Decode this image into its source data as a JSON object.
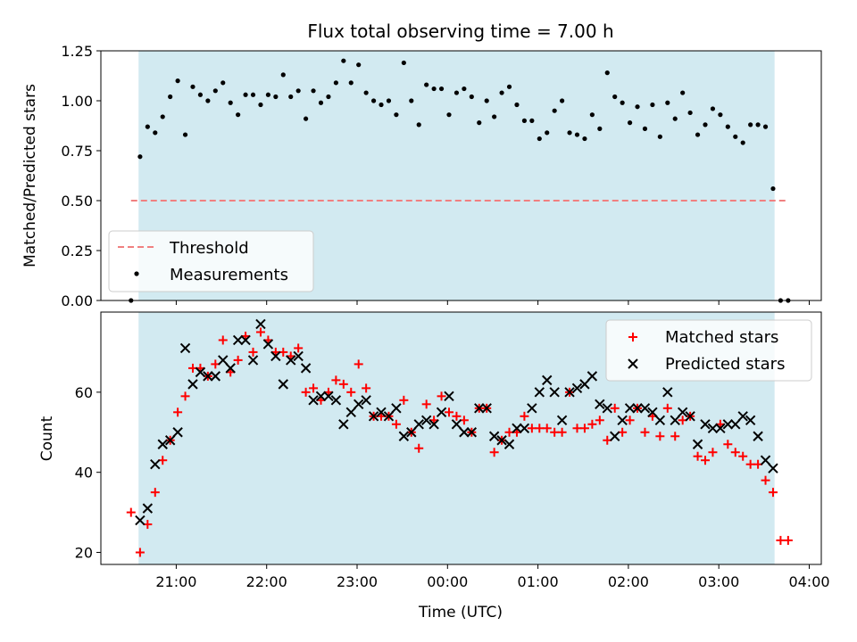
{
  "title": "Flux total observing time = 7.00 h",
  "colors": {
    "band": "#add8e6",
    "threshold": "#f08080",
    "measurements": "#000000",
    "matched": "#ff0000",
    "predicted": "#000000"
  },
  "chart_data": [
    {
      "type": "scatter",
      "panel": "top",
      "title": "Flux total observing time = 7.00 h",
      "xlabel": "",
      "ylabel": "Matched/Predicted stars",
      "xlim": [
        "20:10",
        "04:08"
      ],
      "ylim": [
        0,
        1.25
      ],
      "xticks": [
        "21:00",
        "22:00",
        "23:00",
        "00:00",
        "01:00",
        "02:00",
        "03:00",
        "04:00"
      ],
      "yticks": [
        "0.00",
        "0.25",
        "0.50",
        "0.75",
        "1.00",
        "1.25"
      ],
      "observing_window": [
        "20:35",
        "03:37"
      ],
      "legend_position": "lower-left",
      "threshold": {
        "name": "Threshold",
        "value": 0.5,
        "x_range": [
          "20:30",
          "03:46"
        ]
      },
      "series": [
        {
          "name": "Measurements",
          "x": [
            "20:30",
            "20:36",
            "20:41",
            "20:46",
            "20:51",
            "20:56",
            "21:01",
            "21:06",
            "21:11",
            "21:16",
            "21:21",
            "21:26",
            "21:31",
            "21:36",
            "21:41",
            "21:46",
            "21:51",
            "21:56",
            "22:01",
            "22:06",
            "22:11",
            "22:16",
            "22:21",
            "22:26",
            "22:31",
            "22:36",
            "22:41",
            "22:46",
            "22:51",
            "22:56",
            "23:01",
            "23:06",
            "23:11",
            "23:16",
            "23:21",
            "23:26",
            "23:31",
            "23:36",
            "23:41",
            "23:46",
            "23:51",
            "23:56",
            "00:01",
            "00:06",
            "00:11",
            "00:16",
            "00:21",
            "00:26",
            "00:31",
            "00:36",
            "00:41",
            "00:46",
            "00:51",
            "00:56",
            "01:01",
            "01:06",
            "01:11",
            "01:16",
            "01:21",
            "01:26",
            "01:31",
            "01:36",
            "01:41",
            "01:46",
            "01:51",
            "01:56",
            "02:01",
            "02:06",
            "02:11",
            "02:16",
            "02:21",
            "02:26",
            "02:31",
            "02:36",
            "02:41",
            "02:46",
            "02:51",
            "02:56",
            "03:01",
            "03:06",
            "03:11",
            "03:16",
            "03:21",
            "03:26",
            "03:31",
            "03:36",
            "03:41",
            "03:46"
          ],
          "y": [
            0.0,
            0.72,
            0.87,
            0.84,
            0.92,
            1.02,
            1.1,
            0.83,
            1.07,
            1.03,
            1.0,
            1.05,
            1.09,
            0.99,
            0.93,
            1.03,
            1.03,
            0.98,
            1.03,
            1.02,
            1.13,
            1.02,
            1.05,
            0.91,
            1.05,
            0.99,
            1.02,
            1.09,
            1.2,
            1.09,
            1.18,
            1.04,
            1.0,
            0.98,
            1.0,
            0.93,
            1.19,
            1.0,
            0.88,
            1.08,
            1.06,
            1.06,
            0.93,
            1.04,
            1.06,
            1.02,
            0.89,
            1.0,
            0.92,
            1.04,
            1.07,
            0.98,
            0.9,
            0.9,
            0.81,
            0.84,
            0.95,
            1.0,
            0.84,
            0.83,
            0.81,
            0.93,
            0.86,
            1.14,
            1.02,
            0.99,
            0.89,
            0.97,
            0.86,
            0.98,
            0.82,
            0.99,
            0.91,
            1.04,
            0.94,
            0.83,
            0.88,
            0.96,
            0.93,
            0.87,
            0.82,
            0.79,
            0.88,
            0.88,
            0.87,
            0.56,
            0.0,
            0.0
          ]
        }
      ]
    },
    {
      "type": "scatter",
      "panel": "bottom",
      "xlabel": "Time (UTC)",
      "ylabel": "Count",
      "xlim": [
        "20:10",
        "04:08"
      ],
      "ylim": [
        17,
        80
      ],
      "xticks": [
        "21:00",
        "22:00",
        "23:00",
        "00:00",
        "01:00",
        "02:00",
        "03:00",
        "04:00"
      ],
      "yticks": [
        "20",
        "40",
        "60"
      ],
      "observing_window": [
        "20:35",
        "03:37"
      ],
      "legend_position": "upper-right",
      "series": [
        {
          "name": "Matched stars",
          "x": [
            "20:30",
            "20:36",
            "20:41",
            "20:46",
            "20:51",
            "20:56",
            "21:01",
            "21:06",
            "21:11",
            "21:16",
            "21:21",
            "21:26",
            "21:31",
            "21:36",
            "21:41",
            "21:46",
            "21:51",
            "21:56",
            "22:01",
            "22:06",
            "22:11",
            "22:16",
            "22:21",
            "22:26",
            "22:31",
            "22:36",
            "22:41",
            "22:46",
            "22:51",
            "22:56",
            "23:01",
            "23:06",
            "23:11",
            "23:16",
            "23:21",
            "23:26",
            "23:31",
            "23:36",
            "23:41",
            "23:46",
            "23:51",
            "23:56",
            "00:01",
            "00:06",
            "00:11",
            "00:16",
            "00:21",
            "00:26",
            "00:31",
            "00:36",
            "00:41",
            "00:46",
            "00:51",
            "00:56",
            "01:01",
            "01:06",
            "01:11",
            "01:16",
            "01:21",
            "01:26",
            "01:31",
            "01:36",
            "01:41",
            "01:46",
            "01:51",
            "01:56",
            "02:01",
            "02:06",
            "02:11",
            "02:16",
            "02:21",
            "02:26",
            "02:31",
            "02:36",
            "02:41",
            "02:46",
            "02:51",
            "02:56",
            "03:01",
            "03:06",
            "03:11",
            "03:16",
            "03:21",
            "03:26",
            "03:31",
            "03:36",
            "03:41",
            "03:46"
          ],
          "y": [
            30,
            20,
            27,
            35,
            43,
            48,
            55,
            59,
            66,
            66,
            64,
            67,
            73,
            65,
            68,
            74,
            70,
            75,
            73,
            70,
            70,
            69,
            71,
            60,
            61,
            58,
            60,
            63,
            62,
            60,
            67,
            61,
            54,
            54,
            54,
            52,
            58,
            50,
            46,
            57,
            53,
            59,
            55,
            54,
            53,
            50,
            56,
            56,
            45,
            48,
            50,
            50,
            54,
            51,
            51,
            51,
            50,
            50,
            60,
            51,
            51,
            52,
            53,
            48,
            56,
            50,
            53,
            56,
            50,
            54,
            49,
            56,
            49,
            53,
            54,
            44,
            43,
            45,
            52,
            47,
            45,
            44,
            42,
            42,
            38,
            35,
            23,
            23
          ]
        },
        {
          "name": "Predicted stars",
          "x": [
            "20:36",
            "20:41",
            "20:46",
            "20:51",
            "20:56",
            "21:01",
            "21:06",
            "21:11",
            "21:16",
            "21:21",
            "21:26",
            "21:31",
            "21:36",
            "21:41",
            "21:46",
            "21:51",
            "21:56",
            "22:01",
            "22:06",
            "22:11",
            "22:16",
            "22:21",
            "22:26",
            "22:31",
            "22:36",
            "22:41",
            "22:46",
            "22:51",
            "22:56",
            "23:01",
            "23:06",
            "23:11",
            "23:16",
            "23:21",
            "23:26",
            "23:31",
            "23:36",
            "23:41",
            "23:46",
            "23:51",
            "23:56",
            "00:01",
            "00:06",
            "00:11",
            "00:16",
            "00:21",
            "00:26",
            "00:31",
            "00:36",
            "00:41",
            "00:46",
            "00:51",
            "00:56",
            "01:01",
            "01:06",
            "01:11",
            "01:16",
            "01:21",
            "01:26",
            "01:31",
            "01:36",
            "01:41",
            "01:46",
            "01:51",
            "01:56",
            "02:01",
            "02:06",
            "02:11",
            "02:16",
            "02:21",
            "02:26",
            "02:31",
            "02:36",
            "02:41",
            "02:46",
            "02:51",
            "02:56",
            "03:01",
            "03:06",
            "03:11",
            "03:16",
            "03:21",
            "03:26",
            "03:31",
            "03:36"
          ],
          "y": [
            28,
            31,
            42,
            47,
            48,
            50,
            71,
            62,
            65,
            64,
            64,
            68,
            66,
            73,
            73,
            68,
            77,
            72,
            69,
            62,
            68,
            69,
            66,
            58,
            59,
            59,
            58,
            52,
            55,
            57,
            58,
            54,
            55,
            54,
            56,
            49,
            50,
            52,
            53,
            52,
            55,
            59,
            52,
            50,
            50,
            56,
            56,
            49,
            48,
            47,
            51,
            51,
            56,
            60,
            63,
            60,
            53,
            60,
            61,
            62,
            64,
            57,
            56,
            49,
            53,
            56,
            56,
            56,
            55,
            53,
            60,
            53,
            55,
            54,
            47,
            52,
            51,
            51,
            52,
            52,
            54,
            53,
            49,
            43,
            41
          ]
        }
      ]
    }
  ]
}
